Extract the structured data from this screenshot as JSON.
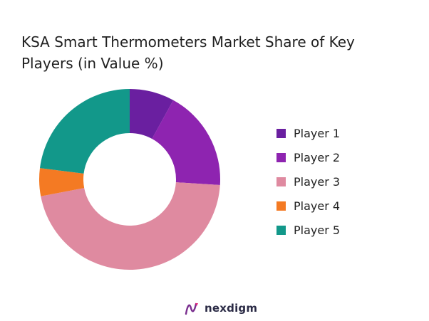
{
  "chart_data": {
    "type": "pie",
    "title": "KSA Smart Thermometers Market Share of Key Players (in Value %)",
    "categories": [
      "Player 1",
      "Player 2",
      "Player 3",
      "Player 4",
      "Player 5"
    ],
    "values": [
      8,
      18,
      46,
      5,
      23
    ],
    "colors": [
      "#6a1fa0",
      "#8e24b0",
      "#df8aa0",
      "#f47a23",
      "#12988a"
    ],
    "donut": true,
    "legend_position": "right"
  },
  "brand": {
    "label": "nexdigm",
    "icon": "nexdigm-logo-icon"
  }
}
